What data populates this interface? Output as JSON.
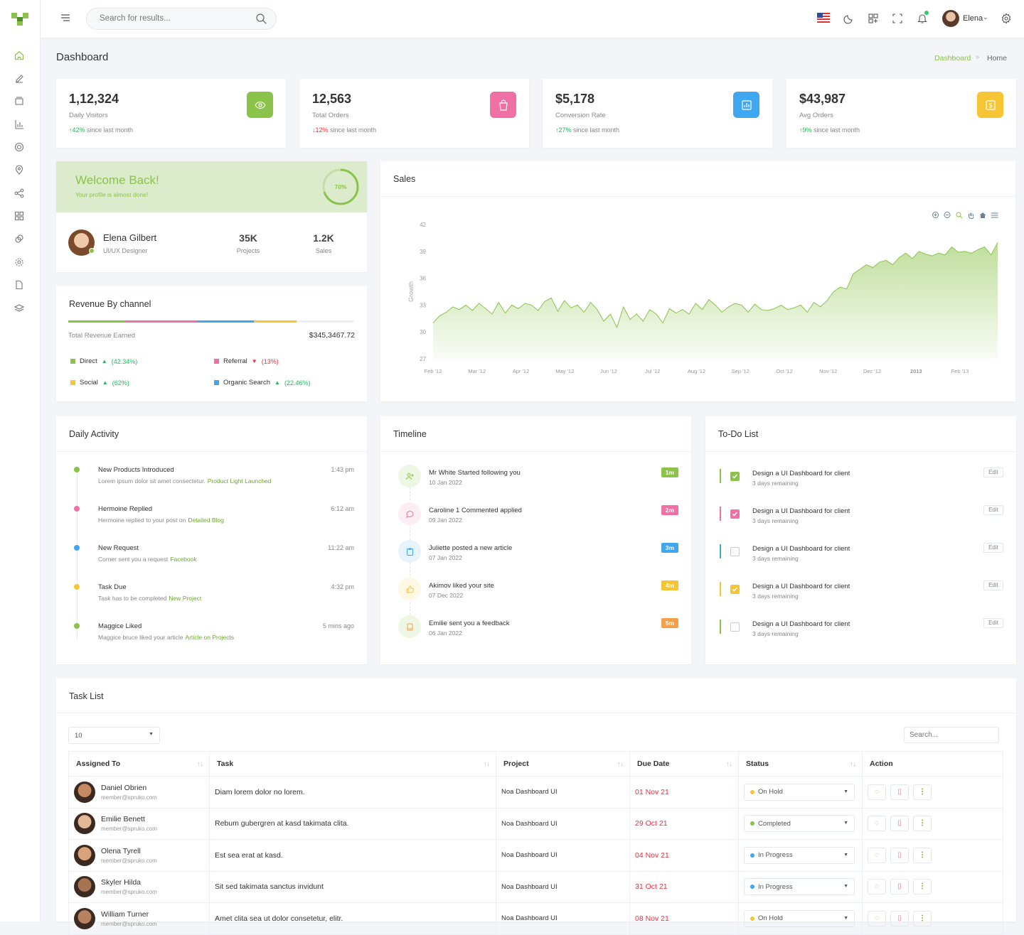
{
  "app": {
    "user_name": "Elena",
    "search_placeholder": "Search for results..."
  },
  "page": {
    "title": "Dashboard",
    "breadcrumb": [
      "Dashboard",
      "Home"
    ]
  },
  "stats": [
    {
      "value": "1,12,324",
      "label": "Daily Visitors",
      "change": "42%",
      "direction": "up",
      "note": "since last month",
      "icon": "eye-icon",
      "color": "#8bc34a"
    },
    {
      "value": "12,563",
      "label": "Total Orders",
      "change": "12%",
      "direction": "down",
      "note": "since last month",
      "icon": "shopping-bag-icon",
      "color": "#f06fa4"
    },
    {
      "value": "$5,178",
      "label": "Conversion Rate",
      "change": "27%",
      "direction": "up",
      "note": "since last month",
      "icon": "report-icon",
      "color": "#3fa7ef"
    },
    {
      "value": "$43,987",
      "label": "Avg Orders",
      "change": "9%",
      "direction": "up",
      "note": "since last month",
      "icon": "dollar-icon",
      "color": "#f5c535"
    }
  ],
  "welcome": {
    "title": "Welcome Back!",
    "subtitle": "Your profile is almost done!",
    "progress": "70%",
    "progress_value": 0.7,
    "name": "Elena Gilbert",
    "role": "UI/UX Designer",
    "projects_value": "35K",
    "projects_label": "Projects",
    "sales_value": "1.2K",
    "sales_label": "Sales"
  },
  "revenue": {
    "title": "Revenue By channel",
    "total_label": "Total Revenue Earned",
    "total_value": "$345,3467.72",
    "channels": [
      {
        "name": "Direct",
        "change": "(42.34%)",
        "direction": "up",
        "color": "#8bc34a"
      },
      {
        "name": "Referral",
        "change": "(13%)",
        "direction": "down",
        "color": "#f06fa4"
      },
      {
        "name": "Social",
        "change": "(62%)",
        "direction": "up",
        "color": "#f5c535"
      },
      {
        "name": "Organic Search",
        "change": "(22.46%)",
        "direction": "up",
        "color": "#3fa7ef"
      }
    ]
  },
  "sales": {
    "title": "Sales"
  },
  "chart_data": {
    "type": "area",
    "title": "Sales",
    "ylabel": "Growth",
    "xlabel": "",
    "ylim": [
      27,
      42
    ],
    "yticks": [
      42,
      39,
      36,
      33,
      30,
      27
    ],
    "xticks": [
      "Feb '12",
      "Mar '12",
      "Apr '12",
      "May '12",
      "Jun '12",
      "Jul '12",
      "Aug '12",
      "Sep '12",
      "Oct '12",
      "Nov '12",
      "Dec '12",
      "2013",
      "Feb '13"
    ],
    "series": [
      {
        "values": [
          31.0,
          31.8,
          32.2,
          32.8,
          32.5,
          33.0,
          32.4,
          33.2,
          32.6,
          32.0,
          33.3,
          32.1,
          33.0,
          32.6,
          33.2,
          33.0,
          32.4,
          33.4,
          33.8,
          32.3,
          33.5,
          32.7,
          33.0,
          32.2,
          33.3,
          32.5,
          31.2,
          32.0,
          30.5,
          32.8,
          31.4,
          32.0,
          31.2,
          32.5,
          32.0,
          31.0,
          32.6,
          32.1,
          32.5,
          32.0,
          33.2,
          32.5,
          33.6,
          33.0,
          32.2,
          32.8,
          33.2,
          33.0,
          32.2,
          33.1,
          32.5,
          32.4,
          32.6,
          33.0,
          32.5,
          32.7,
          33.0,
          32.2,
          33.3,
          32.8,
          33.5,
          34.5,
          35.0,
          34.8,
          36.5,
          37.0,
          37.5,
          37.2,
          37.8,
          38.0,
          37.5,
          38.3,
          38.8,
          38.2,
          39.0,
          38.7,
          38.5,
          38.8,
          38.6,
          39.5,
          38.9,
          39.0,
          38.8,
          39.2,
          39.5,
          38.6,
          40.0
        ]
      }
    ],
    "toolbar_icons": [
      "zoom-in-icon",
      "zoom-out-icon",
      "magnify-icon",
      "pan-icon",
      "home-icon",
      "menu-icon"
    ]
  },
  "daily_activity": {
    "title": "Daily Activity",
    "items": [
      {
        "title": "New Products Introduced",
        "desc": "Lorem ipsum dolor sit amet consectetur.",
        "link": "Product Light Launched",
        "time": "1:43 pm",
        "color": "#8bc34a"
      },
      {
        "title": "Hermoine Replied",
        "desc": "Hermoine replied to your post on",
        "link": "Detailed Blog",
        "time": "6:12 am",
        "color": "#f06fa4"
      },
      {
        "title": "New Request",
        "desc": "Corner sent you a request",
        "link": "Facebook",
        "time": "11:22 am",
        "color": "#3fa7ef"
      },
      {
        "title": "Task Due",
        "desc": "Task has to be completed",
        "link": "New Project",
        "time": "4:32 pm",
        "color": "#f5c535"
      },
      {
        "title": "Maggice Liked",
        "desc": "Maggice bruce liked your article",
        "link": "Article on Projects",
        "time": "5 mins ago",
        "color": "#8bc34a"
      }
    ]
  },
  "timeline": {
    "title": "Timeline",
    "items": [
      {
        "text": "Mr White Started following you",
        "date": "10 Jan 2022",
        "badge": "1m",
        "color": "#8bc34a",
        "bg": "#eef6e4",
        "icon": "user-add-icon"
      },
      {
        "text": "Caroline 1 Commented applied",
        "date": "09 Jan 2022",
        "badge": "2m",
        "color": "#f06fa4",
        "bg": "#fdeef4",
        "icon": "comment-icon"
      },
      {
        "text": "Juliette posted a new article",
        "date": "07 Jan 2022",
        "badge": "3m",
        "color": "#3fa7ef",
        "bg": "#e8f4fd",
        "icon": "clipboard-icon"
      },
      {
        "text": "Akimov liked your site",
        "date": "07 Dec 2022",
        "badge": "4m",
        "color": "#f5c535",
        "bg": "#fef8e4",
        "icon": "thumbs-up-icon"
      },
      {
        "text": "Emilie sent you a feedback",
        "date": "06 Jan 2022",
        "badge": "5m",
        "color": "#f7a04b",
        "bg": "#eef6e4",
        "icon": "book-icon"
      }
    ]
  },
  "todo": {
    "title": "To-Do List",
    "edit_label": "Edit",
    "items": [
      {
        "text": "Design a UI Dashboard for client",
        "sub": "3 days remaining",
        "checked": true,
        "color": "#8bc34a"
      },
      {
        "text": "Design a UI Dashboard for client",
        "sub": "3 days remaining",
        "checked": true,
        "color": "#f06fa4"
      },
      {
        "text": "Design a UI Dashboard for client",
        "sub": "3 days remaining",
        "checked": false,
        "color": "#3fa7ef"
      },
      {
        "text": "Design a UI Dashboard for client",
        "sub": "3 days remaining",
        "checked": true,
        "color": "#f5c535"
      },
      {
        "text": "Design a UI Dashboard for client",
        "sub": "3 days remaining",
        "checked": false,
        "color": "#8bc34a"
      }
    ]
  },
  "tasks": {
    "title": "Task List",
    "page_size": "10",
    "search_placeholder": "Search...",
    "columns": [
      "Assigned To",
      "Task",
      "Project",
      "Due Date",
      "Status",
      "Action"
    ],
    "rows": [
      {
        "name": "Daniel Obrien",
        "email": "member@spruko.com",
        "task": "Diam lorem dolor no lorem.",
        "project": "Noa Dashboard UI",
        "due": "01 Nov 21",
        "status": "On Hold",
        "status_color": "#f5c535"
      },
      {
        "name": "Emilie Benett",
        "email": "member@spruko.com",
        "task": "Rebum gubergren at kasd takimata clita.",
        "project": "Noa Dashboard UI",
        "due": "29 Oct 21",
        "status": "Completed",
        "status_color": "#8bc34a"
      },
      {
        "name": "Olena Tyrell",
        "email": "member@spruko.com",
        "task": "Est sea erat at kasd.",
        "project": "Noa Dashboard UI",
        "due": "04 Nov 21",
        "status": "In Progress",
        "status_color": "#3fa7ef"
      },
      {
        "name": "Skyler Hilda",
        "email": "member@spruko.com",
        "task": "Sit sed takimata sanctus invidunt",
        "project": "Noa Dashboard UI",
        "due": "31 Oct 21",
        "status": "In Progress",
        "status_color": "#3fa7ef"
      },
      {
        "name": "William Turner",
        "email": "member@spruko.com",
        "task": "Amet clita sea ut dolor consetetur, elitr.",
        "project": "Noa Dashboard UI",
        "due": "08 Nov 21",
        "status": "On Hold",
        "status_color": "#f5c535"
      }
    ]
  }
}
